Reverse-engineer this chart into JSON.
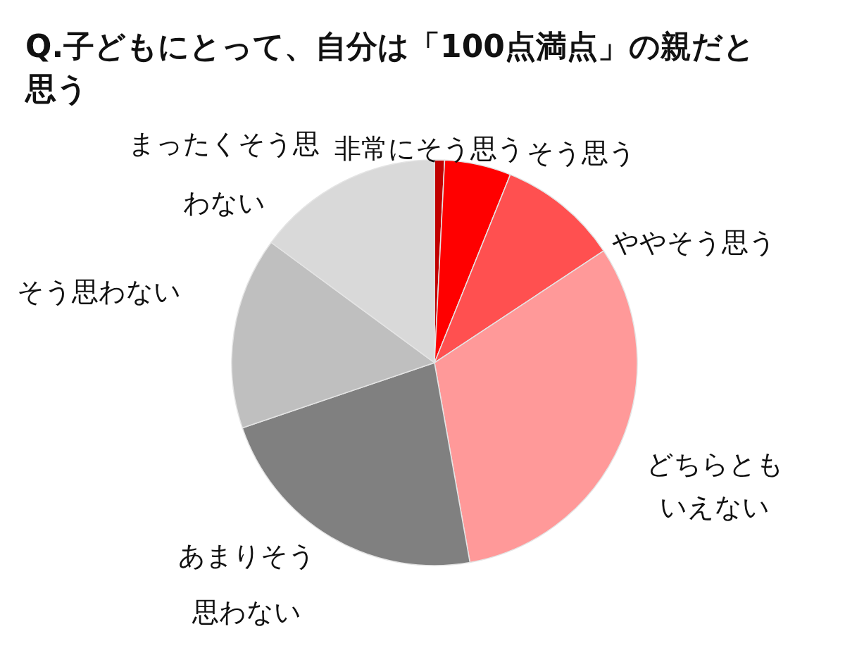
{
  "chart_data": {
    "type": "pie",
    "title": "Q.子どもにとって、自分は「100点満点」の親だと思う",
    "categories": [
      "非常にそう思う",
      "そう思う",
      "ややそう思う",
      "どちらともいえない",
      "あまりそう思わない",
      "そう思わない",
      "まったくそう思わない"
    ],
    "values": [
      0.8,
      5.3,
      9.6,
      31.5,
      22.6,
      15.3,
      14.9
    ],
    "colors": [
      "#c00000",
      "#ff0000",
      "#ff5050",
      "#ff9999",
      "#808080",
      "#bfbfbf",
      "#d9d9d9"
    ]
  }
}
